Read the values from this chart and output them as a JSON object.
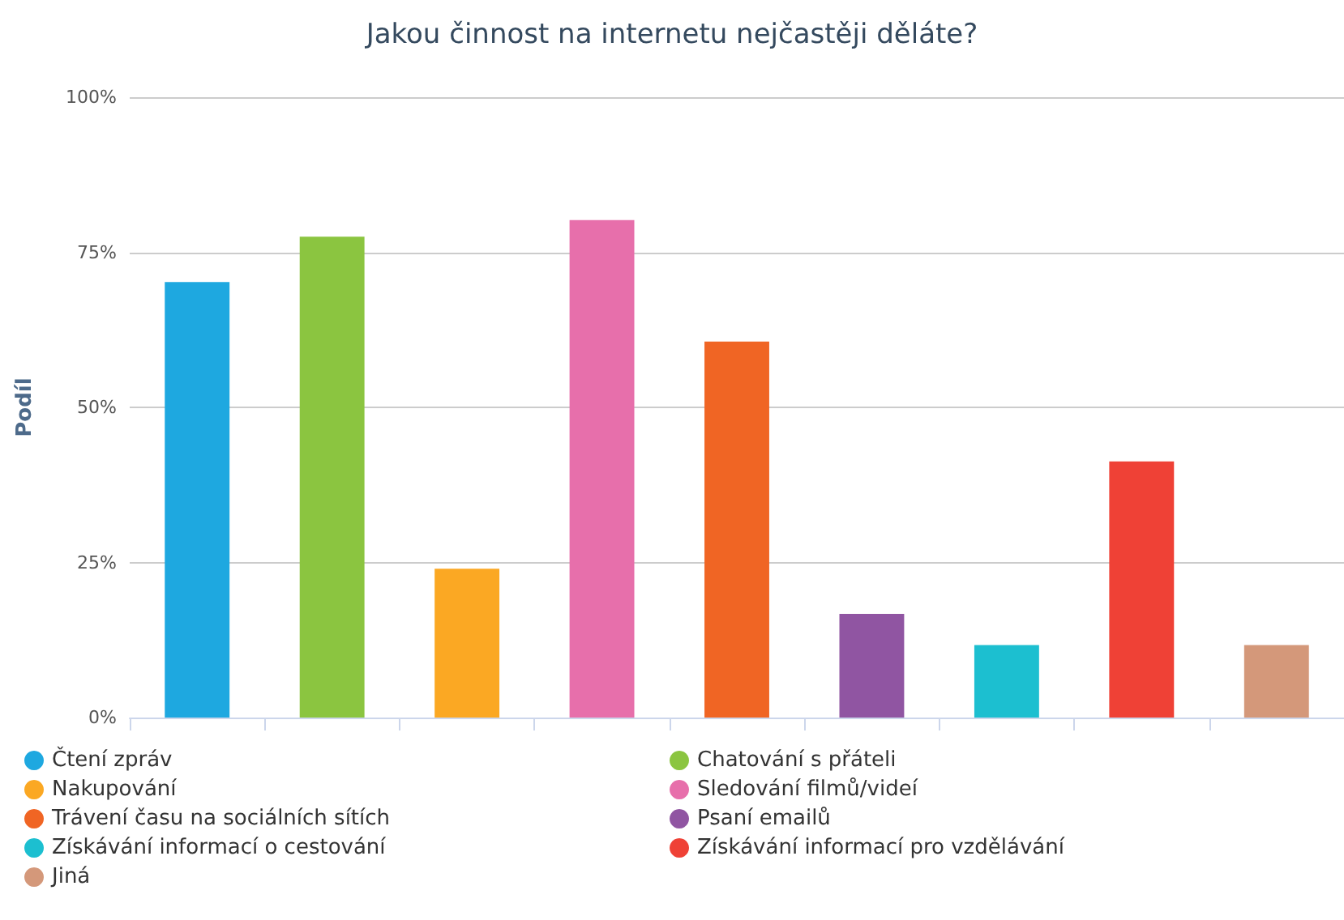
{
  "chart_data": {
    "type": "bar",
    "title": "Jakou činnost na internetu nejčastěji děláte?",
    "ylabel": "Podíl",
    "categories": [
      null,
      null,
      null,
      null,
      null,
      null,
      null,
      null,
      null
    ],
    "series": [
      {
        "name": "Čtení zpráv",
        "color": "#1ea8e0",
        "values": [
          70.2,
          null,
          null,
          null,
          null,
          null,
          null,
          null,
          null
        ]
      },
      {
        "name": "Chatování s přáteli",
        "color": "#8bc540",
        "values": [
          null,
          77.5,
          null,
          null,
          null,
          null,
          null,
          null,
          null
        ]
      },
      {
        "name": "Nakupování",
        "color": "#fba823",
        "values": [
          null,
          null,
          24,
          null,
          null,
          null,
          null,
          null,
          null
        ]
      },
      {
        "name": "Sledování filmů/videí",
        "color": "#e76fab",
        "values": [
          null,
          null,
          null,
          80.2,
          null,
          null,
          null,
          null,
          null
        ]
      },
      {
        "name": "Trávení času na sociálních sítích",
        "color": "#f06524",
        "values": [
          null,
          null,
          null,
          null,
          60.6,
          null,
          null,
          null,
          null
        ]
      },
      {
        "name": "Psaní emailů",
        "color": "#9055a2",
        "values": [
          null,
          null,
          null,
          null,
          null,
          16.7,
          null,
          null,
          null
        ]
      },
      {
        "name": "Získávání informací o cestování",
        "color": "#1cbfd0",
        "values": [
          null,
          null,
          null,
          null,
          null,
          null,
          11.7,
          null,
          null
        ]
      },
      {
        "name": "Získávání informací pro vzdělávání",
        "color": "#ef4136",
        "values": [
          null,
          null,
          null,
          null,
          null,
          null,
          null,
          41.3,
          null
        ]
      },
      {
        "name": "Jiná",
        "color": "#d4987a",
        "values": [
          null,
          null,
          null,
          null,
          null,
          null,
          null,
          null,
          11.7
        ]
      }
    ],
    "ylim": [
      0,
      100
    ],
    "yticks": [
      {
        "value": 0,
        "label": "0%"
      },
      {
        "value": 25,
        "label": "25%"
      },
      {
        "value": 50,
        "label": "50%"
      },
      {
        "value": 75,
        "label": "75%"
      },
      {
        "value": 100,
        "label": "100%"
      }
    ],
    "grid": "y",
    "legend": "bottom",
    "tick_labels": "y"
  }
}
